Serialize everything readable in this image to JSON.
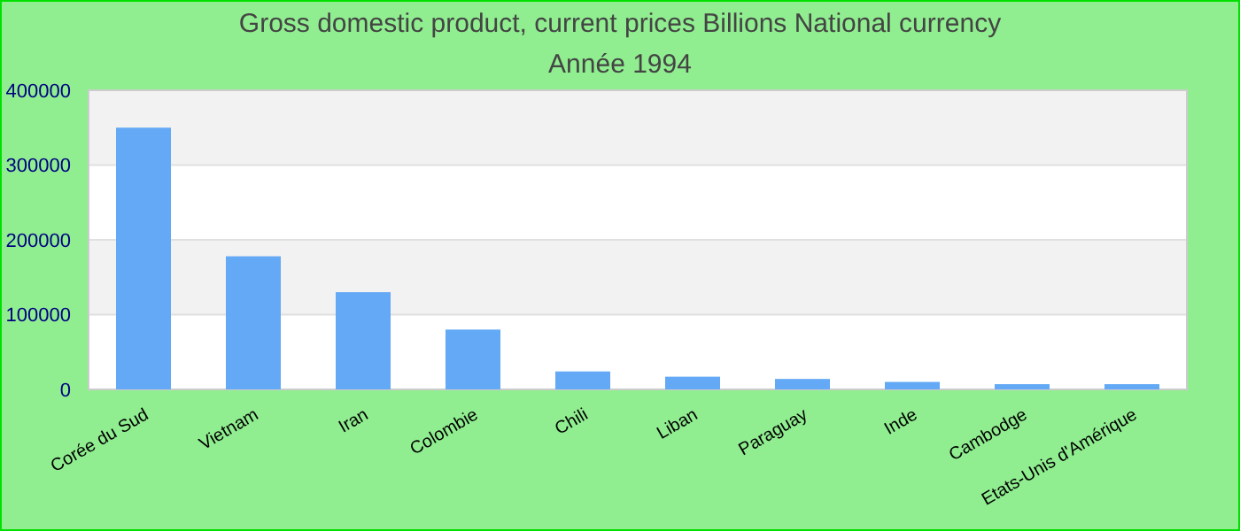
{
  "chart_data": {
    "type": "bar",
    "title": "Gross domestic product, current prices Billions National currency",
    "subtitle": "Année 1994",
    "categories": [
      "Corée du Sud",
      "Vietnam",
      "Iran",
      "Colombie",
      "Chili",
      "Liban",
      "Paraguay",
      "Inde",
      "Cambodge",
      "Etats-Unis d'Amérique"
    ],
    "values": [
      350000,
      178000,
      130000,
      80000,
      24000,
      17000,
      14000,
      10000,
      7000,
      7000
    ],
    "color": "#63a9f5",
    "ylim": [
      0,
      400000
    ],
    "yticks": [
      0,
      100000,
      200000,
      300000,
      400000
    ],
    "grid": "y"
  }
}
